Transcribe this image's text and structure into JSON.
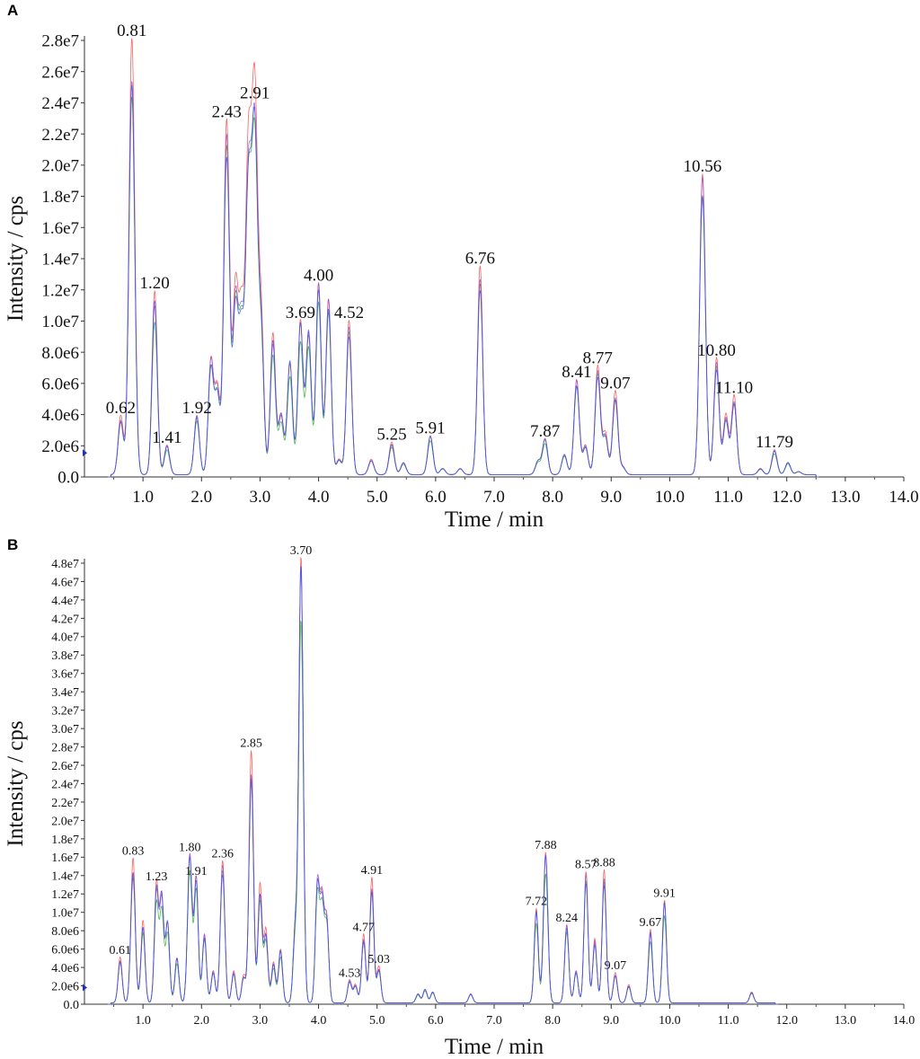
{
  "chart_data": [
    {
      "type": "line",
      "panel": "A",
      "xlabel": "Time / min",
      "ylabel": "Intensity / cps",
      "xlim": [
        0,
        14.0
      ],
      "ylim": [
        0,
        28000000
      ],
      "x_ticks": [
        "1.0",
        "2.0",
        "3.0",
        "4.0",
        "5.0",
        "6.0",
        "7.0",
        "8.0",
        "9.0",
        "10.0",
        "11.0",
        "12.0",
        "13.0",
        "14.0"
      ],
      "y_ticks": [
        "0.0",
        "2.0e6",
        "4.0e6",
        "6.0e6",
        "8.0e6",
        "1.0e7",
        "1.2e7",
        "1.4e7",
        "1.6e7",
        "1.8e7",
        "2.0e7",
        "2.2e7",
        "2.4e7",
        "2.6e7",
        "2.8e7"
      ],
      "series_colors": [
        "#ff4444",
        "#33aa33",
        "#9955cc",
        "#3355ee"
      ],
      "peaks": [
        {
          "label": "0.62",
          "x": 0.62,
          "y": 3800000
        },
        {
          "label": "0.81",
          "x": 0.81,
          "y": 28000000
        },
        {
          "label": "1.20",
          "x": 1.2,
          "y": 11800000
        },
        {
          "label": "1.41",
          "x": 1.41,
          "y": 1900000
        },
        {
          "label": "1.92",
          "x": 1.92,
          "y": 3800000
        },
        {
          "label": "2.43",
          "x": 2.43,
          "y": 22800000
        },
        {
          "label": "2.91",
          "x": 2.91,
          "y": 24000000
        },
        {
          "label": "3.69",
          "x": 3.69,
          "y": 9900000
        },
        {
          "label": "4.00",
          "x": 4.0,
          "y": 12300000
        },
        {
          "label": "4.52",
          "x": 4.52,
          "y": 9900000
        },
        {
          "label": "5.25",
          "x": 5.25,
          "y": 2100000
        },
        {
          "label": "5.91",
          "x": 5.91,
          "y": 2500000
        },
        {
          "label": "6.76",
          "x": 6.76,
          "y": 13400000
        },
        {
          "label": "7.87",
          "x": 7.87,
          "y": 2300000
        },
        {
          "label": "8.41",
          "x": 8.41,
          "y": 6100000
        },
        {
          "label": "8.77",
          "x": 8.77,
          "y": 7000000
        },
        {
          "label": "9.07",
          "x": 9.07,
          "y": 5400000
        },
        {
          "label": "10.56",
          "x": 10.56,
          "y": 19300000
        },
        {
          "label": "10.80",
          "x": 10.8,
          "y": 7500000
        },
        {
          "label": "11.10",
          "x": 11.1,
          "y": 5100000
        },
        {
          "label": "11.79",
          "x": 11.79,
          "y": 1600000
        }
      ],
      "extra_peaks": [
        {
          "x": 2.16,
          "y": 7300000
        },
        {
          "x": 2.27,
          "y": 5500000
        },
        {
          "x": 2.58,
          "y": 11800000
        },
        {
          "x": 2.68,
          "y": 10000000
        },
        {
          "x": 2.8,
          "y": 20500000
        },
        {
          "x": 3.02,
          "y": 9800000
        },
        {
          "x": 3.22,
          "y": 9200000
        },
        {
          "x": 3.36,
          "y": 4000000
        },
        {
          "x": 3.51,
          "y": 7500000
        },
        {
          "x": 3.83,
          "y": 9300000
        },
        {
          "x": 4.17,
          "y": 11300000
        },
        {
          "x": 4.35,
          "y": 1000000
        },
        {
          "x": 4.9,
          "y": 1000000
        },
        {
          "x": 5.45,
          "y": 800000
        },
        {
          "x": 6.12,
          "y": 400000
        },
        {
          "x": 6.42,
          "y": 400000
        },
        {
          "x": 7.75,
          "y": 900000
        },
        {
          "x": 8.2,
          "y": 1300000
        },
        {
          "x": 8.56,
          "y": 1900000
        },
        {
          "x": 8.9,
          "y": 2700000
        },
        {
          "x": 9.2,
          "y": 500000
        },
        {
          "x": 10.96,
          "y": 3900000
        },
        {
          "x": 11.55,
          "y": 400000
        },
        {
          "x": 12.02,
          "y": 800000
        },
        {
          "x": 12.2,
          "y": 200000
        }
      ]
    },
    {
      "type": "line",
      "panel": "B",
      "xlabel": "Time / min",
      "ylabel": "Intensity / cps",
      "xlim": [
        0,
        14.0
      ],
      "ylim": [
        0,
        48000000
      ],
      "x_ticks": [
        "1.0",
        "2.0",
        "3.0",
        "4.0",
        "5.0",
        "6.0",
        "7.0",
        "8.0",
        "9.0",
        "10.0",
        "11.0",
        "12.0",
        "13.0",
        "14.0"
      ],
      "y_ticks": [
        "0.0",
        "2.0e6",
        "4.0e6",
        "6.0e6",
        "8.0e6",
        "1.0e7",
        "1.2e7",
        "1.4e7",
        "1.6e7",
        "1.8e7",
        "2.0e7",
        "2.2e7",
        "2.4e7",
        "2.6e7",
        "2.8e7",
        "3.0e7",
        "3.2e7",
        "3.4e7",
        "3.6e7",
        "3.8e7",
        "4.0e7",
        "4.2e7",
        "4.4e7",
        "4.6e7",
        "4.8e7"
      ],
      "series_colors": [
        "#ff4444",
        "#33aa33",
        "#9955cc",
        "#3355ee"
      ],
      "peaks": [
        {
          "label": "0.61",
          "x": 0.61,
          "y": 5000000
        },
        {
          "label": "0.83",
          "x": 0.83,
          "y": 15800000
        },
        {
          "label": "1.23",
          "x": 1.23,
          "y": 13000000
        },
        {
          "label": "1.80",
          "x": 1.8,
          "y": 16200000
        },
        {
          "label": "1.91",
          "x": 1.91,
          "y": 13600000
        },
        {
          "label": "2.36",
          "x": 2.36,
          "y": 15500000
        },
        {
          "label": "2.85",
          "x": 2.85,
          "y": 27500000
        },
        {
          "label": "3.70",
          "x": 3.7,
          "y": 48500000
        },
        {
          "label": "4.53",
          "x": 4.53,
          "y": 2500000
        },
        {
          "label": "4.77",
          "x": 4.77,
          "y": 7500000
        },
        {
          "label": "4.91",
          "x": 4.91,
          "y": 13700000
        },
        {
          "label": "5.03",
          "x": 5.03,
          "y": 4000000
        },
        {
          "label": "7.72",
          "x": 7.72,
          "y": 10300000
        },
        {
          "label": "7.88",
          "x": 7.88,
          "y": 16400000
        },
        {
          "label": "8.24",
          "x": 8.24,
          "y": 8500000
        },
        {
          "label": "8.57",
          "x": 8.57,
          "y": 14300000
        },
        {
          "label": "8.88",
          "x": 8.88,
          "y": 14500000
        },
        {
          "label": "9.07",
          "x": 9.07,
          "y": 3300000
        },
        {
          "label": "9.67",
          "x": 9.67,
          "y": 8000000
        },
        {
          "label": "9.91",
          "x": 9.91,
          "y": 11200000
        }
      ],
      "extra_peaks": [
        {
          "x": 1.0,
          "y": 9000000
        },
        {
          "x": 1.32,
          "y": 12000000
        },
        {
          "x": 1.42,
          "y": 9000000
        },
        {
          "x": 1.58,
          "y": 5000000
        },
        {
          "x": 2.05,
          "y": 7500000
        },
        {
          "x": 2.2,
          "y": 3500000
        },
        {
          "x": 2.55,
          "y": 3500000
        },
        {
          "x": 2.72,
          "y": 3000000
        },
        {
          "x": 3.0,
          "y": 13000000
        },
        {
          "x": 3.1,
          "y": 8000000
        },
        {
          "x": 3.23,
          "y": 4500000
        },
        {
          "x": 3.35,
          "y": 6000000
        },
        {
          "x": 3.6,
          "y": 8000000
        },
        {
          "x": 3.98,
          "y": 13000000
        },
        {
          "x": 4.06,
          "y": 11000000
        },
        {
          "x": 4.14,
          "y": 9000000
        },
        {
          "x": 4.63,
          "y": 2000000
        },
        {
          "x": 5.7,
          "y": 1000000
        },
        {
          "x": 5.82,
          "y": 1500000
        },
        {
          "x": 5.95,
          "y": 1200000
        },
        {
          "x": 6.6,
          "y": 1000000
        },
        {
          "x": 8.4,
          "y": 3500000
        },
        {
          "x": 8.72,
          "y": 7000000
        },
        {
          "x": 9.3,
          "y": 2000000
        },
        {
          "x": 11.4,
          "y": 1200000
        }
      ]
    }
  ]
}
